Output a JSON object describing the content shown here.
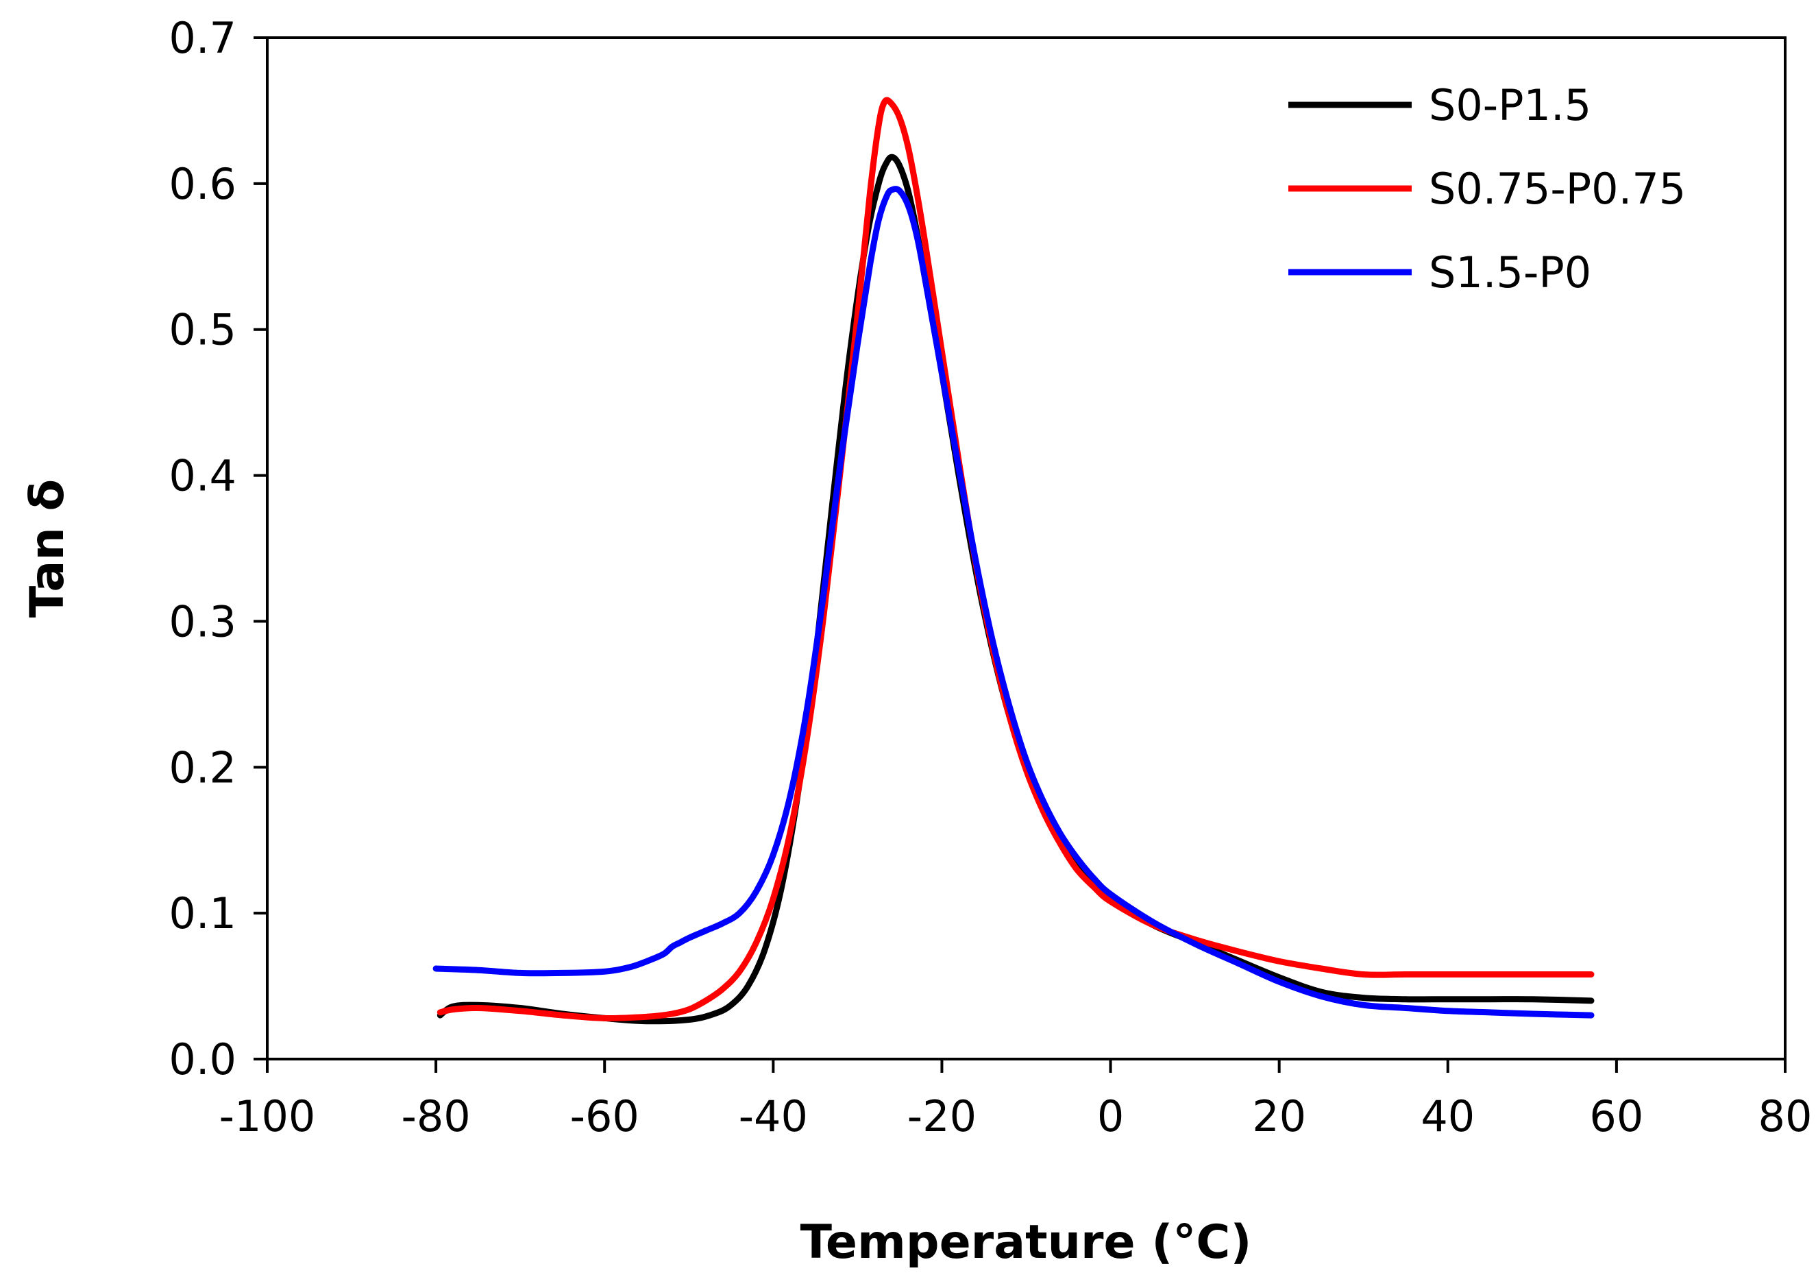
{
  "chart_data": {
    "type": "line",
    "title": "",
    "xlabel": "Temperature (°C)",
    "ylabel": "Tan δ",
    "xlim": [
      -100,
      80
    ],
    "ylim": [
      0.0,
      0.7
    ],
    "xticks": [
      -100,
      -80,
      -60,
      -40,
      -20,
      0,
      20,
      40,
      60,
      80
    ],
    "xtick_labels": [
      "-100",
      "-80",
      "-60",
      "-40",
      "-20",
      "0",
      "20",
      "40",
      "60",
      "80"
    ],
    "yticks": [
      0.0,
      0.1,
      0.2,
      0.3,
      0.4,
      0.5,
      0.6,
      0.7
    ],
    "ytick_labels": [
      "0.0",
      "0.1",
      "0.2",
      "0.3",
      "0.4",
      "0.5",
      "0.6",
      "0.7"
    ],
    "grid": false,
    "legend_position": "top-right",
    "series": [
      {
        "name": "S0-P1.5",
        "color": "#000000",
        "x": [
          -79.5,
          -78,
          -75,
          -70,
          -65,
          -60,
          -55,
          -50,
          -47,
          -45,
          -43,
          -41,
          -39,
          -37,
          -35,
          -33,
          -31,
          -29,
          -27.5,
          -26.5,
          -25.8,
          -25,
          -24,
          -23,
          -22,
          -20,
          -18,
          -16,
          -14,
          -12,
          -10,
          -8,
          -6,
          -4,
          -2,
          0,
          5,
          10,
          15,
          20,
          25,
          30,
          35,
          40,
          45,
          50,
          57
        ],
        "y": [
          0.03,
          0.036,
          0.037,
          0.035,
          0.031,
          0.028,
          0.026,
          0.027,
          0.031,
          0.037,
          0.05,
          0.075,
          0.118,
          0.185,
          0.275,
          0.38,
          0.48,
          0.56,
          0.6,
          0.615,
          0.618,
          0.612,
          0.595,
          0.568,
          0.535,
          0.47,
          0.4,
          0.335,
          0.28,
          0.235,
          0.2,
          0.172,
          0.15,
          0.132,
          0.12,
          0.11,
          0.092,
          0.08,
          0.068,
          0.056,
          0.046,
          0.042,
          0.041,
          0.041,
          0.041,
          0.041,
          0.04
        ]
      },
      {
        "name": "S0.75-P0.75",
        "color": "#ff0000",
        "x": [
          -79.5,
          -78,
          -75,
          -70,
          -65,
          -60,
          -55,
          -52,
          -50,
          -48,
          -46,
          -44,
          -42,
          -40,
          -38,
          -36,
          -34,
          -32,
          -30,
          -28.5,
          -27.5,
          -26.8,
          -26,
          -25,
          -24,
          -23,
          -22,
          -20,
          -18,
          -16,
          -14,
          -12,
          -10,
          -8,
          -6,
          -4,
          -2,
          0,
          5,
          10,
          15,
          20,
          25,
          30,
          35,
          40,
          45,
          50,
          57
        ],
        "y": [
          0.032,
          0.034,
          0.035,
          0.033,
          0.03,
          0.028,
          0.029,
          0.031,
          0.034,
          0.04,
          0.048,
          0.06,
          0.08,
          0.11,
          0.155,
          0.22,
          0.305,
          0.405,
          0.51,
          0.595,
          0.64,
          0.656,
          0.655,
          0.645,
          0.625,
          0.595,
          0.56,
          0.485,
          0.41,
          0.34,
          0.282,
          0.235,
          0.198,
          0.17,
          0.148,
          0.13,
          0.118,
          0.108,
          0.092,
          0.082,
          0.074,
          0.067,
          0.062,
          0.058,
          0.058,
          0.058,
          0.058,
          0.058,
          0.058
        ]
      },
      {
        "name": "S1.5-P0",
        "color": "#0000ff",
        "x": [
          -80,
          -75,
          -70,
          -65,
          -60,
          -57,
          -55,
          -53,
          -52,
          -51,
          -50,
          -48,
          -46,
          -44,
          -42,
          -40,
          -38,
          -36,
          -34,
          -32,
          -30,
          -28.5,
          -27.5,
          -26.5,
          -25.8,
          -25,
          -24,
          -23,
          -22,
          -20,
          -18,
          -16,
          -14,
          -12,
          -10,
          -8,
          -6,
          -4,
          -2,
          0,
          5,
          10,
          15,
          20,
          25,
          30,
          35,
          40,
          45,
          50,
          57
        ],
        "y": [
          0.062,
          0.061,
          0.059,
          0.059,
          0.06,
          0.063,
          0.067,
          0.072,
          0.077,
          0.08,
          0.083,
          0.088,
          0.093,
          0.1,
          0.115,
          0.14,
          0.18,
          0.24,
          0.32,
          0.41,
          0.49,
          0.545,
          0.575,
          0.592,
          0.596,
          0.595,
          0.585,
          0.565,
          0.535,
          0.47,
          0.405,
          0.342,
          0.287,
          0.242,
          0.205,
          0.177,
          0.155,
          0.138,
          0.124,
          0.113,
          0.094,
          0.079,
          0.066,
          0.053,
          0.043,
          0.037,
          0.035,
          0.033,
          0.032,
          0.031,
          0.03
        ]
      }
    ]
  }
}
